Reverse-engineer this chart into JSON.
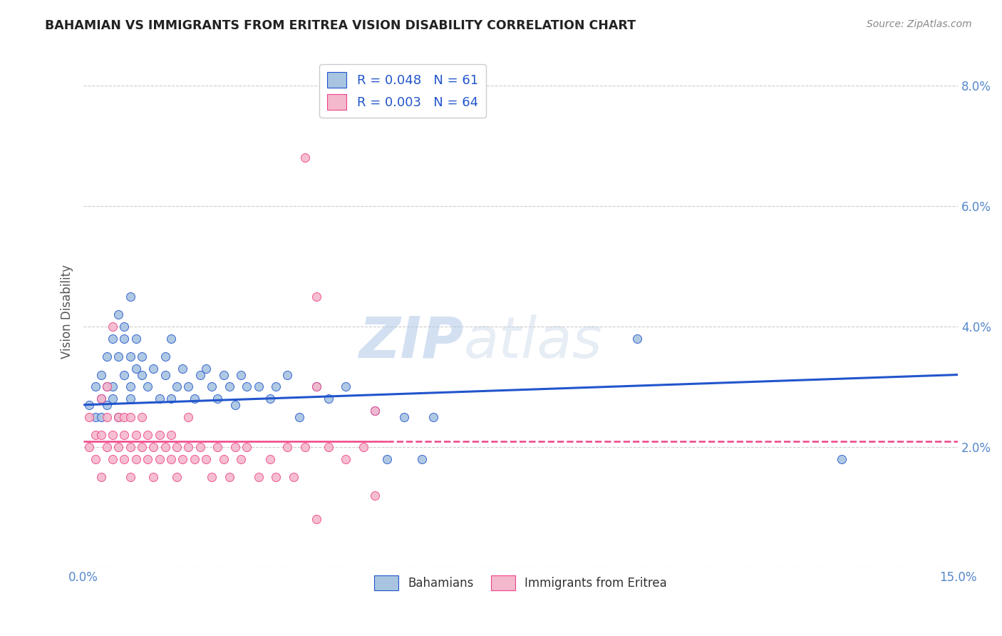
{
  "title": "BAHAMIAN VS IMMIGRANTS FROM ERITREA VISION DISABILITY CORRELATION CHART",
  "source": "Source: ZipAtlas.com",
  "ylabel": "Vision Disability",
  "xlim": [
    0.0,
    0.15
  ],
  "ylim": [
    0.0,
    0.085
  ],
  "legend_label1": "Bahamians",
  "legend_label2": "Immigrants from Eritrea",
  "R1": 0.048,
  "N1": 61,
  "R2": 0.003,
  "N2": 64,
  "color1": "#a8c4e0",
  "color2": "#f4b8cc",
  "line_color1": "#2255cc",
  "line_color2": "#ee4488",
  "axis_color": "#5588cc",
  "watermark_zip": "ZIP",
  "watermark_atlas": "atlas",
  "blue_trend_start": 0.027,
  "blue_trend_end": 0.032,
  "pink_trend_y": 0.021,
  "blue_scatter_x": [
    0.001,
    0.002,
    0.002,
    0.003,
    0.003,
    0.003,
    0.004,
    0.004,
    0.004,
    0.005,
    0.005,
    0.005,
    0.006,
    0.006,
    0.006,
    0.007,
    0.007,
    0.007,
    0.008,
    0.008,
    0.008,
    0.008,
    0.009,
    0.009,
    0.01,
    0.01,
    0.011,
    0.012,
    0.013,
    0.014,
    0.014,
    0.015,
    0.015,
    0.016,
    0.017,
    0.018,
    0.019,
    0.02,
    0.021,
    0.022,
    0.023,
    0.024,
    0.025,
    0.026,
    0.027,
    0.028,
    0.03,
    0.032,
    0.033,
    0.035,
    0.037,
    0.04,
    0.042,
    0.045,
    0.05,
    0.052,
    0.055,
    0.058,
    0.06,
    0.095,
    0.13
  ],
  "blue_scatter_y": [
    0.027,
    0.025,
    0.03,
    0.025,
    0.028,
    0.032,
    0.03,
    0.027,
    0.035,
    0.038,
    0.028,
    0.03,
    0.042,
    0.035,
    0.025,
    0.04,
    0.032,
    0.038,
    0.035,
    0.03,
    0.028,
    0.045,
    0.033,
    0.038,
    0.032,
    0.035,
    0.03,
    0.033,
    0.028,
    0.035,
    0.032,
    0.028,
    0.038,
    0.03,
    0.033,
    0.03,
    0.028,
    0.032,
    0.033,
    0.03,
    0.028,
    0.032,
    0.03,
    0.027,
    0.032,
    0.03,
    0.03,
    0.028,
    0.03,
    0.032,
    0.025,
    0.03,
    0.028,
    0.03,
    0.026,
    0.018,
    0.025,
    0.018,
    0.025,
    0.038,
    0.018
  ],
  "pink_scatter_x": [
    0.001,
    0.001,
    0.002,
    0.002,
    0.003,
    0.003,
    0.003,
    0.004,
    0.004,
    0.004,
    0.005,
    0.005,
    0.005,
    0.006,
    0.006,
    0.007,
    0.007,
    0.007,
    0.008,
    0.008,
    0.008,
    0.009,
    0.009,
    0.01,
    0.01,
    0.011,
    0.011,
    0.012,
    0.012,
    0.013,
    0.013,
    0.014,
    0.015,
    0.015,
    0.016,
    0.016,
    0.017,
    0.018,
    0.018,
    0.019,
    0.02,
    0.021,
    0.022,
    0.023,
    0.024,
    0.025,
    0.026,
    0.027,
    0.028,
    0.03,
    0.032,
    0.033,
    0.035,
    0.036,
    0.038,
    0.04,
    0.042,
    0.045,
    0.048,
    0.05,
    0.038,
    0.04,
    0.05,
    0.04
  ],
  "pink_scatter_y": [
    0.025,
    0.02,
    0.022,
    0.018,
    0.028,
    0.022,
    0.015,
    0.03,
    0.02,
    0.025,
    0.04,
    0.022,
    0.018,
    0.02,
    0.025,
    0.022,
    0.018,
    0.025,
    0.02,
    0.025,
    0.015,
    0.022,
    0.018,
    0.02,
    0.025,
    0.018,
    0.022,
    0.02,
    0.015,
    0.022,
    0.018,
    0.02,
    0.018,
    0.022,
    0.015,
    0.02,
    0.018,
    0.02,
    0.025,
    0.018,
    0.02,
    0.018,
    0.015,
    0.02,
    0.018,
    0.015,
    0.02,
    0.018,
    0.02,
    0.015,
    0.018,
    0.015,
    0.02,
    0.015,
    0.02,
    0.03,
    0.02,
    0.018,
    0.02,
    0.026,
    0.068,
    0.045,
    0.012,
    0.008
  ]
}
